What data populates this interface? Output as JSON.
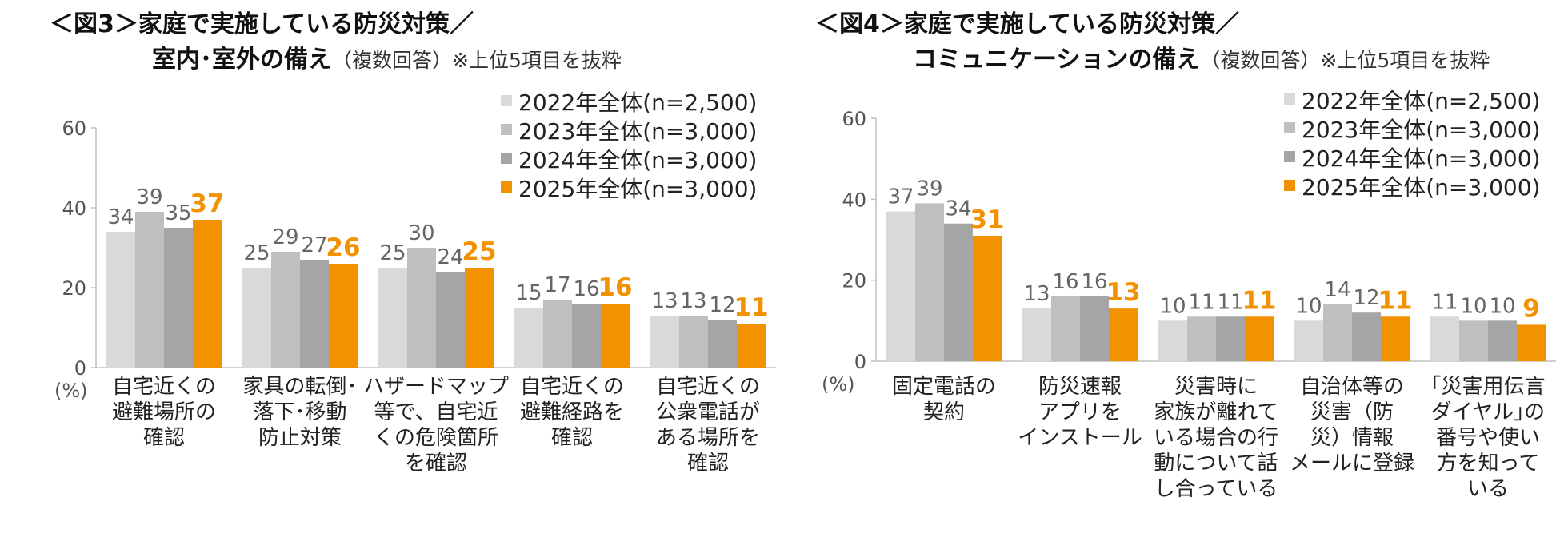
{
  "colors": {
    "s2022": "#d9d9d9",
    "s2023": "#bfbfbf",
    "s2024": "#a5a5a5",
    "s2025": "#f39200"
  },
  "chart_data": [
    {
      "type": "bar",
      "title_line1": "＜図3＞家庭で実施している防災対策／",
      "title_line2": "室内･室外の備え",
      "title_note": "（複数回答）※上位5項目を抜粋",
      "ylabel": "(%)",
      "ylim": [
        0,
        60
      ],
      "yticks": [
        "0",
        "20",
        "40",
        "60"
      ],
      "grid": false,
      "legend_position": "top-right",
      "categories": [
        [
          "自宅近くの",
          "避難場所の",
          "確認"
        ],
        [
          "家具の転倒･",
          "落下･移動",
          "防止対策"
        ],
        [
          "ハザードマップ",
          "等で、自宅近",
          "くの危険箇所",
          "を確認"
        ],
        [
          "自宅近くの",
          "避難経路を",
          "確認"
        ],
        [
          "自宅近くの",
          "公衆電話が",
          "ある場所を",
          "確認"
        ]
      ],
      "series": [
        {
          "name": "2022年全体(n=2,500)",
          "values": [
            34,
            25,
            25,
            15,
            13
          ],
          "labels": [
            "34",
            "25",
            "25",
            "15",
            "13"
          ]
        },
        {
          "name": "2023年全体(n=3,000)",
          "values": [
            39,
            29,
            30,
            17,
            13
          ],
          "labels": [
            "39",
            "29",
            "30",
            "17",
            "13"
          ]
        },
        {
          "name": "2024年全体(n=3,000)",
          "values": [
            35,
            27,
            24,
            16,
            12
          ],
          "labels": [
            "35",
            "27",
            "24",
            "16",
            "12"
          ]
        },
        {
          "name": "2025年全体(n=3,000)",
          "values": [
            37,
            26,
            25,
            16,
            11
          ],
          "labels": [
            "37",
            "26",
            "25",
            "16",
            "11"
          ]
        }
      ]
    },
    {
      "type": "bar",
      "title_line1": "＜図4＞家庭で実施している防災対策／",
      "title_line2": "コミュニケーションの備え",
      "title_note": "（複数回答）※上位5項目を抜粋",
      "ylabel": "(%)",
      "ylim": [
        0,
        60
      ],
      "yticks": [
        "0",
        "20",
        "40",
        "60"
      ],
      "grid": false,
      "legend_position": "top-right",
      "categories": [
        [
          "固定電話の",
          "契約"
        ],
        [
          "防災速報",
          "アプリを",
          "インストール"
        ],
        [
          "災害時に",
          "家族が離れて",
          "いる場合の行",
          "動について話",
          "し合っている"
        ],
        [
          "自治体等の",
          "災害（防",
          "災）情報",
          "メールに登録"
        ],
        [
          "｢災害用伝言",
          "ダイヤル｣の",
          "番号や使い",
          "方を知って",
          "いる"
        ]
      ],
      "series": [
        {
          "name": "2022年全体(n=2,500)",
          "values": [
            37,
            13,
            10,
            10,
            11
          ],
          "labels": [
            "37",
            "13",
            "10",
            "10",
            "11"
          ]
        },
        {
          "name": "2023年全体(n=3,000)",
          "values": [
            39,
            16,
            11,
            14,
            10
          ],
          "labels": [
            "39",
            "16",
            "11",
            "14",
            "10"
          ]
        },
        {
          "name": "2024年全体(n=3,000)",
          "values": [
            34,
            16,
            11,
            12,
            10
          ],
          "labels": [
            "34",
            "16",
            "11",
            "12",
            "10"
          ]
        },
        {
          "name": "2025年全体(n=3,000)",
          "values": [
            31,
            13,
            11,
            11,
            9
          ],
          "labels": [
            "31",
            "13",
            "11",
            "11",
            "9"
          ]
        }
      ]
    }
  ]
}
